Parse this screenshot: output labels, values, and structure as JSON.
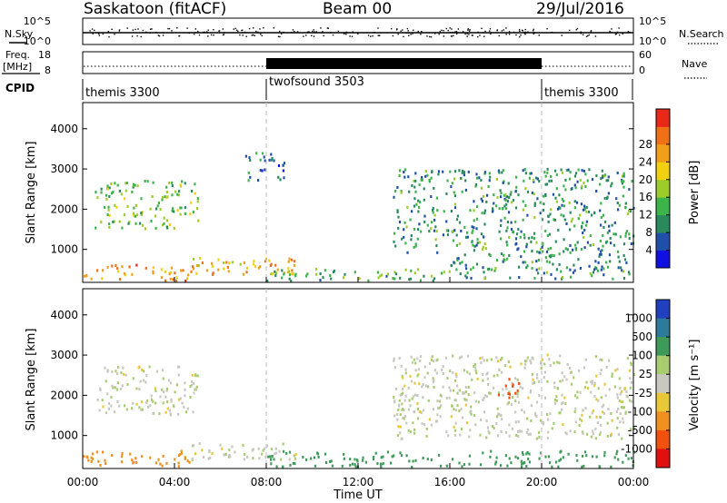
{
  "header": {
    "station": "Saskatoon (fitACF)",
    "beam": "Beam 00",
    "date": "29/Jul/2016"
  },
  "left_labels": {
    "nsky": "N.Sky",
    "freq": "Freq.",
    "freq_unit": "[MHz]",
    "cpid": "CPID"
  },
  "right_labels": {
    "nsearch": "N.Search",
    "nave": "Nave"
  },
  "noise_panel": {
    "left_ticks": [
      "10^5",
      "10^0"
    ],
    "right_ticks": [
      "10^5",
      "10^0"
    ]
  },
  "freq_panel": {
    "left_ticks": [
      "18",
      "8"
    ],
    "right_ticks": [
      "60",
      "0"
    ]
  },
  "cpid_segments": [
    {
      "label": "themis 3300",
      "start_hour": 0,
      "end_hour": 8
    },
    {
      "label": "twofsound 3503",
      "start_hour": 8,
      "end_hour": 20
    },
    {
      "label": "themis 3300",
      "start_hour": 20,
      "end_hour": 24
    }
  ],
  "time_axis": {
    "label": "Time UT",
    "ticks": [
      "00:00",
      "04:00",
      "08:00",
      "12:00",
      "16:00",
      "20:00",
      "00:00"
    ]
  },
  "range_axis": {
    "label": "Slant Range [km]",
    "ticks": [
      "1000",
      "2000",
      "3000",
      "4000"
    ]
  },
  "colorbars": {
    "power": {
      "label": "Power [dB]",
      "ticks": [
        "4",
        "8",
        "12",
        "16",
        "20",
        "24",
        "28"
      ],
      "colors": [
        "#1010e0",
        "#1f4fa8",
        "#2a8a5e",
        "#3cb44a",
        "#9ccc2a",
        "#f0d010",
        "#f0a018",
        "#f07018",
        "#e82818"
      ]
    },
    "velocity": {
      "label": "Velocity [m s⁻¹]",
      "ticks": [
        "1000",
        "500",
        "100",
        "25",
        "-25",
        "-100",
        "-500",
        "-1000"
      ],
      "colors": [
        "#2040c0",
        "#2f7a9a",
        "#3f9a5a",
        "#a8cc70",
        "#c8c8c0",
        "#e8c838",
        "#f09020",
        "#f05010",
        "#e01010"
      ]
    }
  },
  "chart_data": {
    "type": "heatmap",
    "x_range_hours": [
      0,
      24
    ],
    "y_range_km": [
      180,
      4650
    ],
    "panels": [
      {
        "name": "power",
        "ylabel": "Slant Range [km]",
        "value_label": "Power [dB]",
        "echo_regions": [
          {
            "t0": 0.0,
            "t1": 4.8,
            "r_low": 200,
            "r_high": 600,
            "level": 24
          },
          {
            "t0": 4.5,
            "t1": 9.5,
            "r_low": 350,
            "r_high": 800,
            "level": 22
          },
          {
            "t0": 8.0,
            "t1": 16.5,
            "r_low": 200,
            "r_high": 500,
            "level": 12
          },
          {
            "t0": 16.0,
            "t1": 24.0,
            "r_low": 250,
            "r_high": 900,
            "level": 10
          },
          {
            "t0": 0.5,
            "t1": 5.0,
            "r_low": 1500,
            "r_high": 2700,
            "level": 14
          },
          {
            "t0": 7.0,
            "t1": 8.8,
            "r_low": 2700,
            "r_high": 3400,
            "level": 8
          },
          {
            "t0": 13.5,
            "t1": 24.0,
            "r_low": 900,
            "r_high": 3000,
            "level": 10
          },
          {
            "t0": 18.0,
            "t1": 19.0,
            "r_low": 2000,
            "r_high": 2400,
            "level": 12
          }
        ]
      },
      {
        "name": "velocity",
        "ylabel": "Slant Range [km]",
        "value_label": "Velocity [m s⁻¹]",
        "echo_regions": [
          {
            "t0": 0.0,
            "t1": 4.8,
            "r_low": 200,
            "r_high": 600,
            "level": -100
          },
          {
            "t0": 0.5,
            "t1": 5.0,
            "r_low": 1500,
            "r_high": 2700,
            "level": 0
          },
          {
            "t0": 4.5,
            "t1": 9.5,
            "r_low": 350,
            "r_high": 800,
            "level": 0
          },
          {
            "t0": 8.0,
            "t1": 24.0,
            "r_low": 200,
            "r_high": 600,
            "level": 100
          },
          {
            "t0": 13.5,
            "t1": 24.0,
            "r_low": 900,
            "r_high": 3000,
            "level": 0
          },
          {
            "t0": 18.0,
            "t1": 19.0,
            "r_low": 1900,
            "r_high": 2400,
            "level": -500
          }
        ]
      }
    ]
  }
}
